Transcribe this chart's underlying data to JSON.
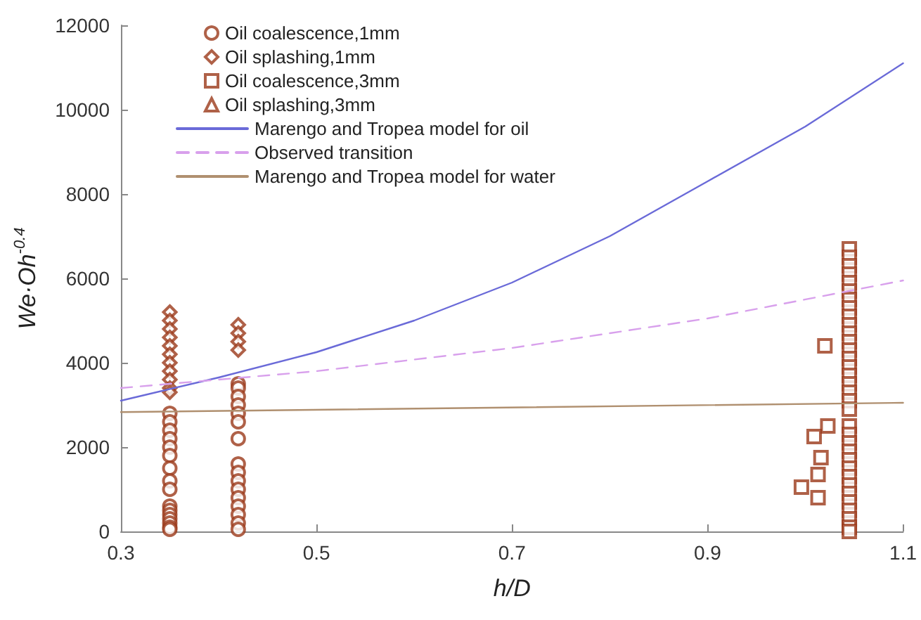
{
  "chart_data": {
    "type": "scatter",
    "xlabel": "h/D",
    "ylabel": "We·Oh$^{-0.4}$",
    "xlim": [
      0.3,
      1.1
    ],
    "xticks": [
      0.3,
      0.5,
      0.7,
      0.9,
      1.1
    ],
    "ylim": [
      0,
      12000
    ],
    "yticks": [
      0,
      {
        "value": 2000,
        "label": "2000"
      },
      {
        "value": 4000,
        "label": "4000"
      },
      {
        "value": 6000,
        "label": "6000"
      },
      {
        "value": 8000,
        "label": "8000"
      },
      {
        "value": 10000,
        "label": "10000"
      },
      {
        "value": 12000,
        "label": "12000"
      }
    ],
    "grid": false,
    "legend": "top left",
    "series": [
      {
        "name": "Oil coalescence,1mm",
        "type": "scatter",
        "marker": "circle",
        "color": "#9b3a1a",
        "x": [
          0.35,
          0.35,
          0.35,
          0.35,
          0.35,
          0.35,
          0.35,
          0.35,
          0.35,
          0.35,
          0.35,
          0.35,
          0.35,
          0.35,
          0.35,
          0.35,
          0.42,
          0.42,
          0.42,
          0.42,
          0.42,
          0.42,
          0.42,
          0.42,
          0.42,
          0.42,
          0.42,
          0.42,
          0.42,
          0.42,
          0.42,
          0.42
        ],
        "values": [
          2800,
          2600,
          2400,
          2200,
          2000,
          1800,
          1500,
          1200,
          1000,
          600,
          500,
          400,
          300,
          200,
          100,
          50,
          3500,
          3400,
          3200,
          3000,
          2800,
          2600,
          2200,
          1600,
          1400,
          1200,
          1000,
          800,
          600,
          400,
          200,
          50
        ]
      },
      {
        "name": "Oil splashing,1mm",
        "type": "scatter",
        "marker": "diamond",
        "color": "#9b3a1a",
        "x": [
          0.35,
          0.35,
          0.35,
          0.35,
          0.35,
          0.35,
          0.35,
          0.35,
          0.35,
          0.35,
          0.35,
          0.42,
          0.42,
          0.42,
          0.42
        ],
        "values": [
          5200,
          5000,
          4800,
          4600,
          4400,
          4200,
          4000,
          3800,
          3600,
          3400,
          3300,
          4900,
          4700,
          4500,
          4300
        ]
      },
      {
        "name": "Oil coalescence,3mm",
        "type": "scatter",
        "marker": "square",
        "color": "#9b3a1a",
        "x": [
          1.045,
          1.045,
          1.045,
          1.045,
          1.045,
          1.045,
          1.045,
          1.045,
          1.045,
          1.045,
          1.045,
          1.045,
          1.045,
          1.045,
          1.045,
          1.045,
          1.045,
          1.045,
          1.045,
          1.045,
          1.045,
          1.045,
          1.045,
          1.045,
          1.045,
          1.045,
          1.045,
          1.045,
          1.045,
          1.045,
          1.045,
          1.045,
          1.045,
          1.045,
          1.02,
          1.023,
          1.009,
          1.016,
          1.013,
          0.996,
          1.013
        ],
        "values": [
          6700,
          6500,
          6300,
          6100,
          5900,
          5700,
          5500,
          5300,
          5100,
          4900,
          4700,
          4500,
          4300,
          4100,
          3900,
          3700,
          3500,
          3300,
          3100,
          2900,
          2500,
          2300,
          2100,
          1900,
          1700,
          1500,
          1300,
          1100,
          900,
          700,
          500,
          300,
          100,
          0,
          4400,
          2500,
          2250,
          1750,
          1350,
          1050,
          800
        ]
      },
      {
        "name": "Oil splashing,3mm",
        "type": "scatter",
        "marker": "triangle",
        "color": "#9b3a1a"
      },
      {
        "name": "Marengo and Tropea model for oil",
        "type": "line",
        "marker": "none",
        "line_style": "solid",
        "color": "#6a6ad8",
        "x": [
          0.3,
          0.4,
          0.5,
          0.6,
          0.7,
          0.8,
          0.9,
          1.0,
          1.1
        ],
        "values": [
          3100,
          3650,
          4250,
          5000,
          5900,
          7000,
          8300,
          9600,
          11100
        ]
      },
      {
        "name": "Observed transition",
        "type": "line",
        "marker": "none",
        "line_style": "dashed",
        "color": "#d8a0ec",
        "x": [
          0.3,
          0.5,
          0.7,
          0.9,
          1.1
        ],
        "values": [
          3400,
          3800,
          4350,
          5050,
          5950
        ]
      },
      {
        "name": "Marengo and Tropea model for water",
        "type": "line",
        "marker": "none",
        "line_style": "solid",
        "color": "#b09070",
        "x": [
          0.3,
          1.1
        ],
        "values": [
          2830,
          3050
        ]
      }
    ]
  }
}
